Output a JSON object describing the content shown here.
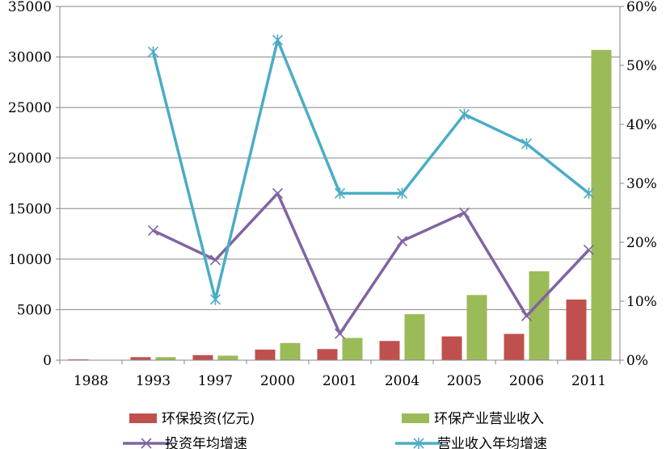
{
  "chart_data": {
    "type": "bar",
    "categories": [
      "1988",
      "1993",
      "1997",
      "2000",
      "2001",
      "2004",
      "2005",
      "2006",
      "2011"
    ],
    "left_axis": {
      "ylim": [
        0,
        35000
      ],
      "ticks": [
        0,
        5000,
        10000,
        15000,
        20000,
        25000,
        30000,
        35000
      ],
      "tick_labels": [
        "0",
        "5000",
        "10000",
        "15000",
        "20000",
        "25000",
        "30000",
        "35000"
      ]
    },
    "right_axis": {
      "ylim": [
        0,
        60
      ],
      "ticks": [
        0,
        10,
        20,
        30,
        40,
        50,
        60
      ],
      "tick_labels": [
        "0%",
        "10%",
        "20%",
        "30%",
        "40%",
        "50%",
        "60%"
      ]
    },
    "grid": true,
    "legend_position": "bottom",
    "series": [
      {
        "name": "环保投资(亿元)",
        "type": "bar",
        "axis": "left",
        "color": "#c0504d",
        "values": [
          80,
          300,
          500,
          1050,
          1100,
          1900,
          2350,
          2600,
          6000
        ]
      },
      {
        "name": "环保产业营业收入",
        "type": "bar",
        "axis": "left",
        "color": "#9bbb59",
        "values": [
          null,
          300,
          450,
          1700,
          2200,
          4550,
          6450,
          8800,
          30700
        ]
      },
      {
        "name": "投资年均增速",
        "type": "line",
        "axis": "right",
        "marker": "x",
        "color": "#8064a2",
        "values": [
          null,
          22,
          17,
          28.3,
          4.5,
          20.2,
          25,
          7.5,
          18.7
        ]
      },
      {
        "name": "营业收入年均增速",
        "type": "line",
        "axis": "right",
        "marker": "star",
        "color": "#4bacc6",
        "values": [
          null,
          52.3,
          10.3,
          54.3,
          28.3,
          28.3,
          41.7,
          36.7,
          28.3
        ]
      }
    ]
  }
}
